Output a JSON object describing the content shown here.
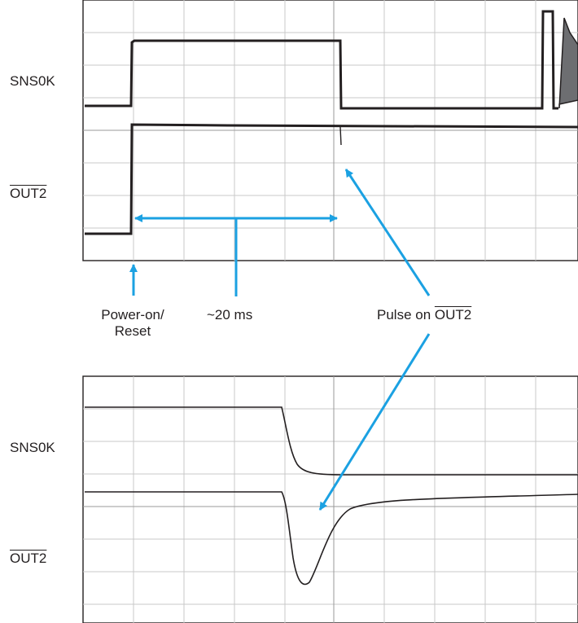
{
  "top_scope": {
    "channel1_label": "SNS0K",
    "channel2_label": "OUT2"
  },
  "annotations": {
    "power_on_line1": "Power-on/",
    "power_on_line2": "Reset",
    "duration": "~20 ms",
    "pulse_prefix": "Pulse on ",
    "pulse_signal": "OUT2"
  },
  "bottom_scope": {
    "channel1_label": "SNS0K",
    "channel2_label": "OUT2"
  },
  "colors": {
    "annotation": "#1ba1e2",
    "trace": "#231f20",
    "grid": "#c8c8c8"
  }
}
